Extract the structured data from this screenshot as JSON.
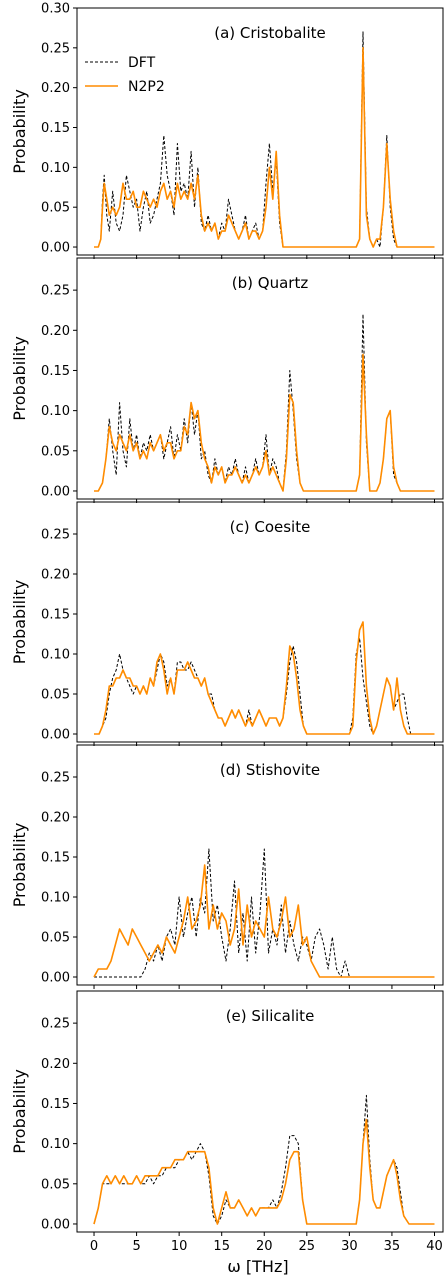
{
  "figure": {
    "xlabel": "ω [THz]",
    "ylabel": "Probability",
    "colors": {
      "DFT": "#000000",
      "N2P2": "#ff8c00"
    }
  },
  "legend": {
    "placement": "upper-left (panel a)",
    "entries": [
      {
        "name": "DFT",
        "style": "dashed",
        "color": "#000000"
      },
      {
        "name": "N2P2",
        "style": "solid",
        "color": "#ff8c00"
      }
    ]
  },
  "chart_data": [
    {
      "type": "line",
      "title": "(a) Cristobalite",
      "xlim": [
        -2,
        41
      ],
      "ylim": [
        -0.01,
        0.3
      ],
      "x_ticks": [
        0,
        5,
        10,
        15,
        20,
        25,
        30,
        35,
        40
      ],
      "x_tick_labels": [],
      "y_ticks": [
        "0.00",
        "0.05",
        "0.10",
        "0.15",
        "0.20",
        "0.25",
        "0.30"
      ],
      "series": [
        {
          "name": "DFT",
          "x": [
            0,
            0.5,
            0.8,
            1.0,
            1.2,
            1.5,
            1.8,
            2.2,
            2.6,
            3.0,
            3.4,
            3.8,
            4.2,
            4.6,
            5.0,
            5.4,
            5.8,
            6.2,
            6.6,
            7.0,
            7.4,
            7.8,
            8.2,
            8.6,
            9.0,
            9.4,
            9.8,
            10.2,
            10.6,
            11.0,
            11.4,
            11.8,
            12.2,
            12.6,
            13.0,
            13.4,
            13.8,
            14.2,
            14.6,
            15.0,
            15.4,
            15.8,
            16.2,
            16.6,
            17.0,
            17.4,
            17.8,
            18.2,
            18.6,
            19.0,
            19.4,
            19.8,
            20.2,
            20.6,
            21.0,
            21.4,
            21.8,
            22.2,
            22.6,
            23.0,
            23.4,
            23.8,
            24.2,
            24.6,
            25.0,
            26,
            28,
            30,
            30.8,
            31.2,
            31.6,
            32.0,
            32.4,
            32.8,
            33.2,
            33.6,
            34.0,
            34.4,
            34.8,
            35.2,
            35.6,
            36.0,
            36.4,
            37,
            38,
            40
          ],
          "y": [
            0,
            0,
            0.01,
            0.06,
            0.09,
            0.04,
            0.02,
            0.07,
            0.03,
            0.02,
            0.04,
            0.09,
            0.07,
            0.05,
            0.06,
            0.02,
            0.05,
            0.07,
            0.03,
            0.04,
            0.06,
            0.08,
            0.14,
            0.09,
            0.07,
            0.04,
            0.13,
            0.07,
            0.08,
            0.06,
            0.12,
            0.05,
            0.1,
            0.03,
            0.02,
            0.04,
            0.02,
            0.03,
            0.01,
            0.03,
            0.02,
            0.06,
            0.04,
            0.02,
            0.01,
            0.02,
            0.04,
            0.01,
            0.02,
            0.03,
            0.01,
            0.02,
            0.08,
            0.13,
            0.07,
            0.11,
            0.03,
            0.0,
            0.0,
            0,
            0,
            0,
            0,
            0.0,
            0.0,
            0,
            0,
            0,
            0.0,
            0.01,
            0.27,
            0.05,
            0.01,
            0.0,
            0.01,
            0.0,
            0.05,
            0.14,
            0.05,
            0.01,
            0.0,
            0,
            0,
            0,
            0,
            0
          ],
          "note": ""
        }
      ]
    },
    {
      "type": "line",
      "title": "(b) Quartz",
      "xlim": [
        -2,
        41
      ],
      "ylim": [
        -0.01,
        0.29
      ],
      "x_ticks": [
        0,
        5,
        10,
        15,
        20,
        25,
        30,
        35,
        40
      ],
      "x_tick_labels": [],
      "y_ticks": [
        "0.00",
        "0.05",
        "0.10",
        "0.15",
        "0.20",
        "0.25"
      ],
      "series": []
    },
    {
      "type": "line",
      "title": "(c) Coesite",
      "xlim": [
        -2,
        41
      ],
      "ylim": [
        -0.01,
        0.29
      ],
      "x_ticks": [
        0,
        5,
        10,
        15,
        20,
        25,
        30,
        35,
        40
      ],
      "x_tick_labels": [],
      "y_ticks": [
        "0.00",
        "0.05",
        "0.10",
        "0.15",
        "0.20",
        "0.25"
      ],
      "series": []
    },
    {
      "type": "line",
      "title": "(d) Stishovite",
      "xlim": [
        -2,
        41
      ],
      "ylim": [
        -0.01,
        0.29
      ],
      "x_ticks": [
        0,
        5,
        10,
        15,
        20,
        25,
        30,
        35,
        40
      ],
      "x_tick_labels": [],
      "y_ticks": [
        "0.00",
        "0.05",
        "0.10",
        "0.15",
        "0.20",
        "0.25"
      ],
      "series": []
    },
    {
      "type": "line",
      "title": "(e) Silicalite",
      "xlim": [
        -2,
        41
      ],
      "ylim": [
        -0.01,
        0.29
      ],
      "x_ticks": [
        0,
        5,
        10,
        15,
        20,
        25,
        30,
        35,
        40
      ],
      "x_tick_labels": [
        "0",
        "5",
        "10",
        "15",
        "20",
        "25",
        "30",
        "35",
        "40"
      ],
      "y_ticks": [
        "0.00",
        "0.05",
        "0.10",
        "0.15",
        "0.20",
        "0.25"
      ],
      "series": []
    }
  ]
}
